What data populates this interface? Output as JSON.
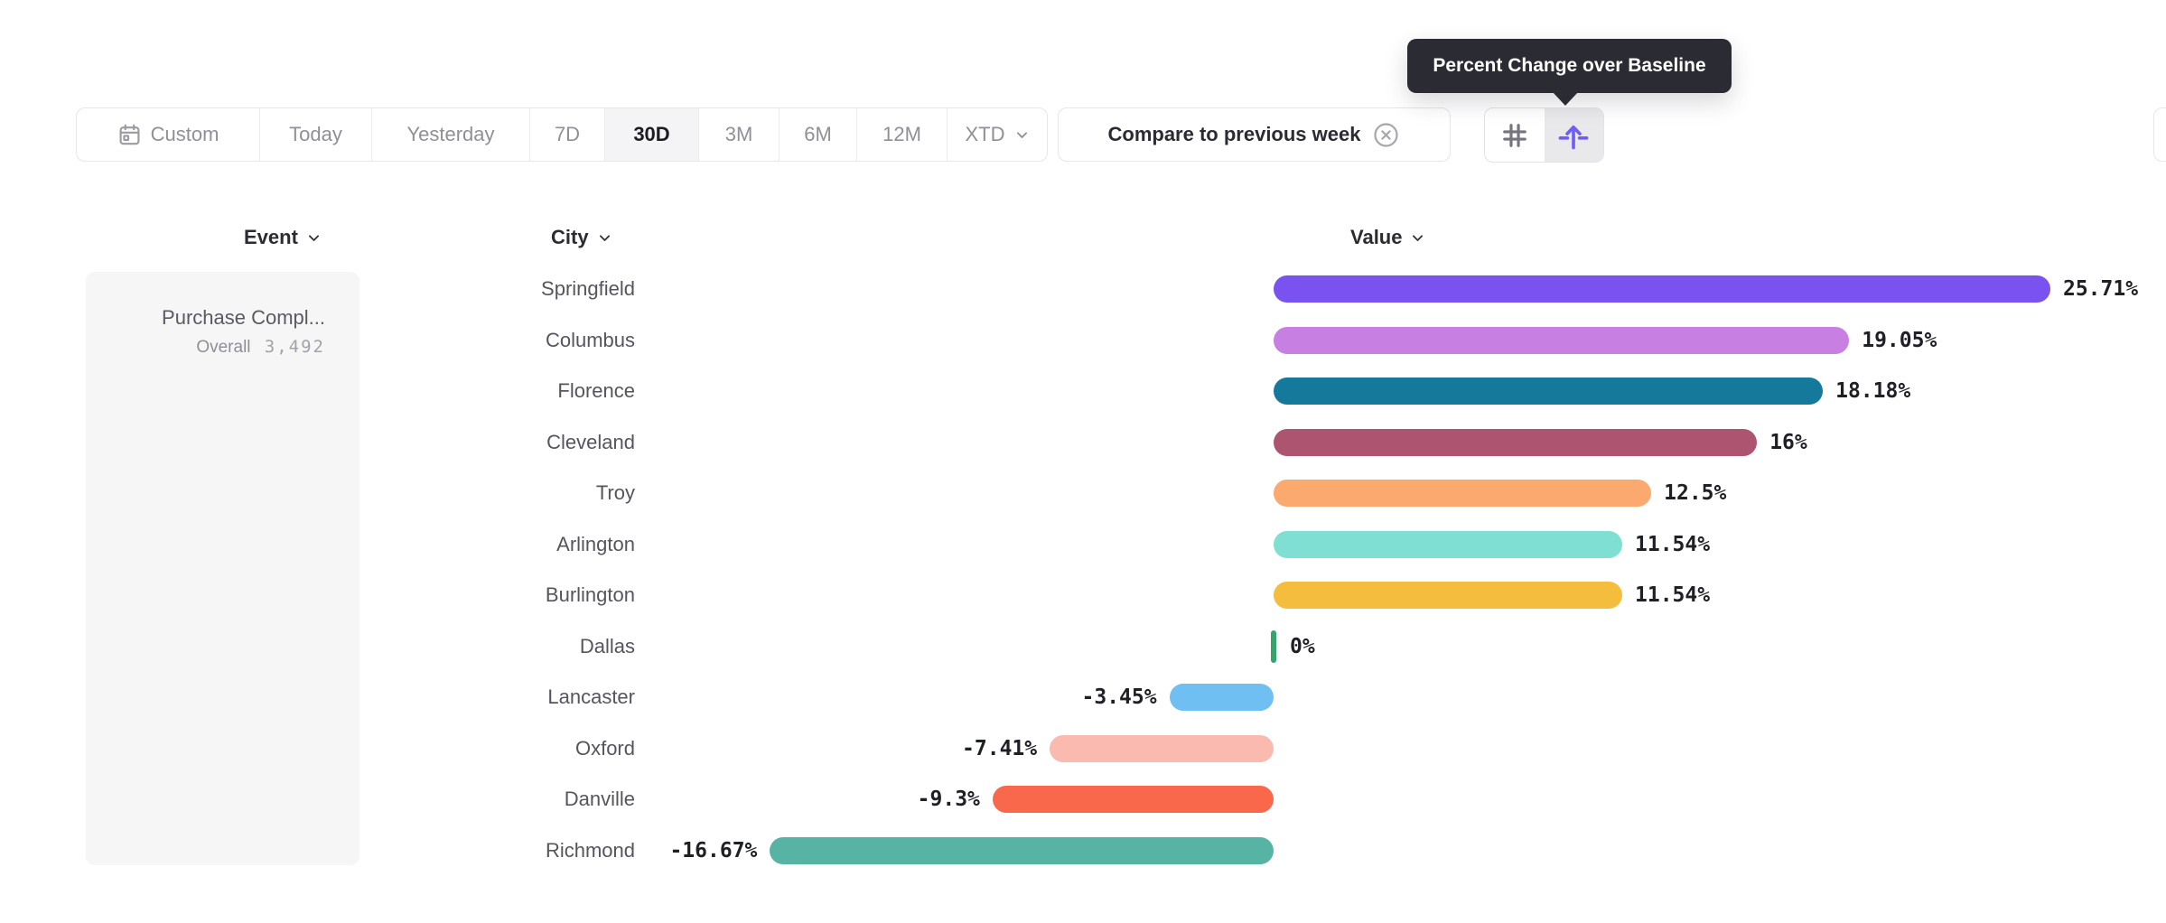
{
  "toolbar": {
    "date_buttons": [
      {
        "label": "Custom",
        "icon": "calendar-icon",
        "active": false
      },
      {
        "label": "Today",
        "active": false
      },
      {
        "label": "Yesterday",
        "active": false
      },
      {
        "label": "7D",
        "active": false
      },
      {
        "label": "30D",
        "active": true
      },
      {
        "label": "3M",
        "active": false
      },
      {
        "label": "6M",
        "active": false
      },
      {
        "label": "12M",
        "active": false
      },
      {
        "label": "XTD",
        "chevron": "chevron-down-icon",
        "active": false
      }
    ],
    "compare_chip": {
      "label": "Compare to previous week",
      "close_icon": "circle-x-icon"
    },
    "view_toggle": [
      {
        "icon": "grid-hash-icon",
        "active": false
      },
      {
        "icon": "baseline-arrow-icon",
        "active": true
      }
    ]
  },
  "tooltip": {
    "text": "Percent Change over Baseline"
  },
  "column_headers": {
    "event": "Event",
    "city": "City",
    "value": "Value"
  },
  "event_panel": {
    "title": "Purchase Compl...",
    "overall_label": "Overall",
    "overall_value": "3,492"
  },
  "chart_data": {
    "type": "bar",
    "orientation": "horizontal",
    "group_by": "City",
    "metric": "Percent Change over Baseline",
    "unit": "%",
    "categories": [
      "Springfield",
      "Columbus",
      "Florence",
      "Cleveland",
      "Troy",
      "Arlington",
      "Burlington",
      "Dallas",
      "Lancaster",
      "Oxford",
      "Danville",
      "Richmond"
    ],
    "values": [
      25.71,
      19.05,
      18.18,
      16,
      12.5,
      11.54,
      11.54,
      0,
      -3.45,
      -7.41,
      -9.3,
      -16.67
    ],
    "value_labels": [
      "25.71%",
      "19.05%",
      "18.18%",
      "16%",
      "12.5%",
      "11.54%",
      "11.54%",
      "0%",
      "-3.45%",
      "-7.41%",
      "-9.3%",
      "-16.67%"
    ],
    "bar_colors": [
      "#7952f0",
      "#c77fe2",
      "#15799c",
      "#ad5470",
      "#fba96e",
      "#7edfd2",
      "#f5bd3d",
      "#34a56d",
      "#70bff2",
      "#fbbab0",
      "#f9684a",
      "#57b4a4"
    ],
    "zero_marker_color": "#34a56d",
    "baseline": 0,
    "xlim": [
      -20,
      30
    ],
    "grid": false,
    "legend": false
  },
  "colors": {
    "accent_purple": "#6f5ef5",
    "tooltip_bg": "#2b2b33",
    "toolbar_border": "#e7e7ea",
    "active_segment_bg": "#f4f4f6",
    "event_card_bg": "#f6f6f7",
    "muted_text": "#8f8f97",
    "dark_text": "#1f1f26"
  }
}
